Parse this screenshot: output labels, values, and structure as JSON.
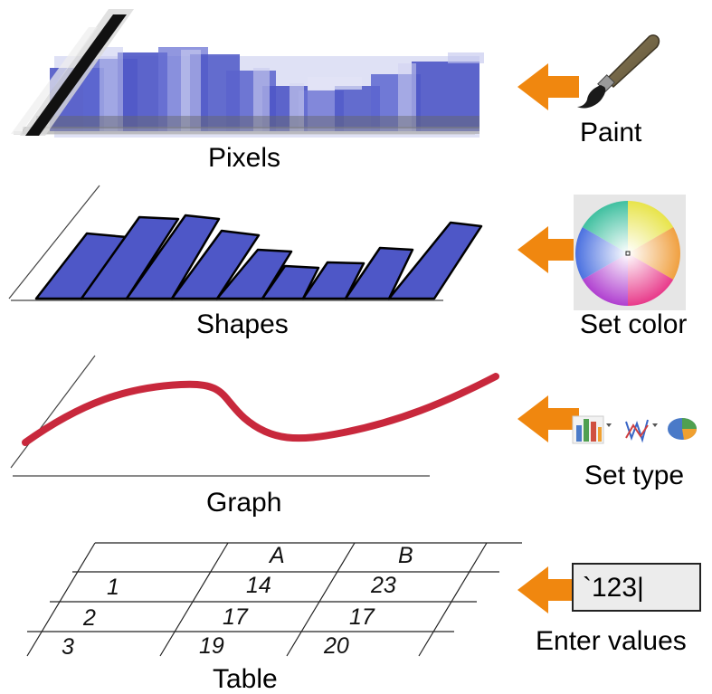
{
  "diagram": {
    "rows": [
      {
        "id": "pixels",
        "label": "Pixels",
        "action": "Paint",
        "icon": "paintbrush-icon"
      },
      {
        "id": "shapes",
        "label": "Shapes",
        "action": "Set color",
        "icon": "color-wheel-icon"
      },
      {
        "id": "graph",
        "label": "Graph",
        "action": "Set type",
        "icon": "chart-type-icons"
      },
      {
        "id": "table",
        "label": "Table",
        "action": "Enter values",
        "icon": "text-input-box"
      }
    ],
    "bar_values": [
      3,
      4,
      4.5,
      3.5,
      2.5,
      2,
      2,
      3,
      4.2
    ],
    "curve_color": "#c8283c",
    "bar_color": "#4e57c7",
    "arrow_color": "#f0870f",
    "table": {
      "headers": [
        "",
        "A",
        "B"
      ],
      "rows": [
        [
          "1",
          "14",
          "23"
        ],
        [
          "2",
          "17",
          "17"
        ],
        [
          "3",
          "19",
          "20"
        ]
      ]
    },
    "input_value": "`123|"
  }
}
